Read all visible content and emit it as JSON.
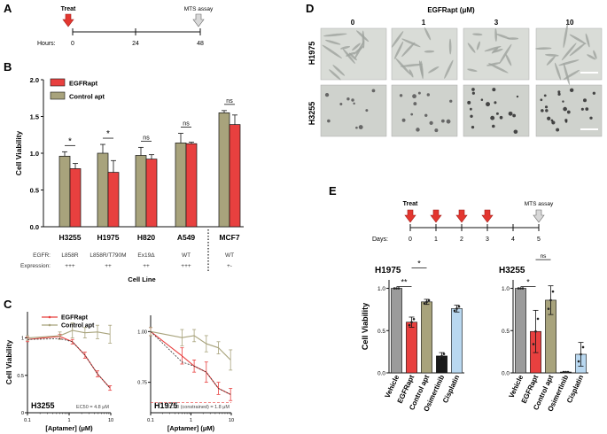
{
  "panel_labels": [
    "A",
    "B",
    "C",
    "D",
    "E"
  ],
  "colors": {
    "egfrapt": "#e8403f",
    "control": "#a8a37c",
    "vehicle": "#9b9b9b",
    "osimertinib": "#1a1a1a",
    "cisplatin": "#b9d8f0",
    "treat_arrow": "#e3362f",
    "mts_arrow": "#d8d8d8",
    "fit_line": "#333333"
  },
  "panel_a": {
    "treat_label": "Treat",
    "mts_label": "MTS assay",
    "hours_label": "Hours:",
    "ticks": [
      "0",
      "24",
      "48"
    ]
  },
  "panel_d": {
    "title": "EGFRapt (μM)",
    "concentrations": [
      "0",
      "1",
      "3",
      "10"
    ],
    "rows": [
      "H1975",
      "H3255"
    ]
  },
  "panel_e": {
    "treat_label": "Treat",
    "mts_label": "MTS assay",
    "days_label": "Days:",
    "ticks": [
      "0",
      "1",
      "2",
      "3",
      "4",
      "5"
    ]
  },
  "chart_data": [
    {
      "id": "B",
      "type": "bar",
      "ylabel": "Cell Viability",
      "xlabel": "Cell Line",
      "ylim": [
        0,
        2.0
      ],
      "yticks": [
        "0.0",
        "0.5",
        "1.0",
        "1.5",
        "2.0"
      ],
      "categories": [
        "H3255",
        "H1975",
        "H820",
        "A549",
        "MCF7"
      ],
      "egfr_row_label": "EGFR:",
      "expression_row_label": "Expression:",
      "egfr": [
        "L858R",
        "L858R/T790M",
        "Ex19Δ",
        "WT",
        "WT"
      ],
      "expression": [
        "+++",
        "++",
        "++",
        "+++",
        "+-"
      ],
      "series": [
        {
          "name": "Control apt",
          "values": [
            0.96,
            1.0,
            0.97,
            1.14,
            1.55
          ],
          "errors": [
            0.06,
            0.12,
            0.11,
            0.13,
            0.03
          ]
        },
        {
          "name": "EGFRapt",
          "values": [
            0.79,
            0.74,
            0.92,
            1.13,
            1.39
          ],
          "errors": [
            0.07,
            0.16,
            0.06,
            0.02,
            0.13
          ]
        }
      ],
      "legend_order": [
        "EGFRapt",
        "Control apt"
      ],
      "significance": [
        "*",
        "*",
        "ns",
        "ns",
        "ns"
      ]
    },
    {
      "id": "C-left",
      "type": "line",
      "ylabel": "Cell Viability",
      "xlabel": "[Aptamer] (μM)",
      "xscale": "log",
      "xlim": [
        0.1,
        10
      ],
      "ylim": [
        0,
        1.35
      ],
      "xticks": [
        "0.1",
        "1",
        "10"
      ],
      "yticks": [
        "0",
        "0.5",
        "1"
      ],
      "cell_line": "H3255",
      "ec50_text": "EC50 = 4.8 μM",
      "x": [
        0.1,
        0.6,
        1.2,
        2.4,
        4.8,
        9.6
      ],
      "series": [
        {
          "name": "EGFRapt",
          "values": [
            0.98,
            1.02,
            0.95,
            0.77,
            0.52,
            0.33
          ],
          "errors": [
            0.03,
            0.03,
            0.03,
            0.04,
            0.04,
            0.03
          ]
        },
        {
          "name": "Control apt",
          "values": [
            1.0,
            1.03,
            1.1,
            1.07,
            1.08,
            1.05
          ],
          "errors": [
            0.03,
            0.05,
            0.1,
            0.07,
            0.09,
            0.12
          ]
        }
      ],
      "legend": [
        "EGFRapt",
        "Control apt"
      ]
    },
    {
      "id": "C-right",
      "type": "line",
      "xlabel": "[Aptamer] (μM)",
      "xscale": "log",
      "xlim": [
        0.1,
        10
      ],
      "ylim": [
        0.6,
        1.08
      ],
      "xticks": [
        "0.1",
        "1",
        "10"
      ],
      "yticks": [
        "0.75",
        "1.00"
      ],
      "cell_line": "H1975",
      "ec50_text": "EC50 (constrained) = 1.8 μM",
      "x": [
        0.1,
        0.6,
        1.2,
        2.4,
        4.8,
        9.6
      ],
      "series": [
        {
          "name": "EGFRapt",
          "values": [
            1.0,
            0.88,
            0.83,
            0.8,
            0.72,
            0.69
          ],
          "errors": [
            0.02,
            0.04,
            0.03,
            0.05,
            0.03,
            0.03
          ]
        },
        {
          "name": "Control apt",
          "values": [
            1.0,
            0.97,
            0.98,
            0.94,
            0.92,
            0.86
          ],
          "errors": [
            0.02,
            0.04,
            0.03,
            0.04,
            0.03,
            0.05
          ]
        }
      ]
    },
    {
      "id": "E-H1975",
      "type": "bar",
      "title": "H1975",
      "ylabel": "Cell Viability",
      "ylim": [
        0,
        1.1
      ],
      "yticks": [
        "0.0",
        "0.5",
        "1.0"
      ],
      "categories": [
        "Vehicle",
        "EGFRapt",
        "Control apt",
        "Osimertinib",
        "Cisplatin"
      ],
      "values": [
        1.0,
        0.6,
        0.84,
        0.2,
        0.76
      ],
      "errors": [
        0.0,
        0.06,
        0.03,
        0.04,
        0.04
      ],
      "brackets": [
        {
          "from": 0,
          "to": 1,
          "label": "**"
        },
        {
          "from": 1,
          "to": 2,
          "label": "*"
        }
      ]
    },
    {
      "id": "E-H3255",
      "type": "bar",
      "title": "H3255",
      "ylim": [
        0,
        1.1
      ],
      "yticks": [
        "0.0",
        "0.5",
        "1.0"
      ],
      "categories": [
        "Vehicle",
        "EGFRapt",
        "Control apt",
        "Osimertinib",
        "Cisplatin"
      ],
      "values": [
        1.0,
        0.49,
        0.86,
        0.01,
        0.22
      ],
      "errors": [
        0.0,
        0.25,
        0.17,
        0.0,
        0.14
      ],
      "brackets": [
        {
          "from": 0,
          "to": 1,
          "label": "*"
        },
        {
          "from": 1,
          "to": 2,
          "label": "ns"
        }
      ]
    }
  ]
}
